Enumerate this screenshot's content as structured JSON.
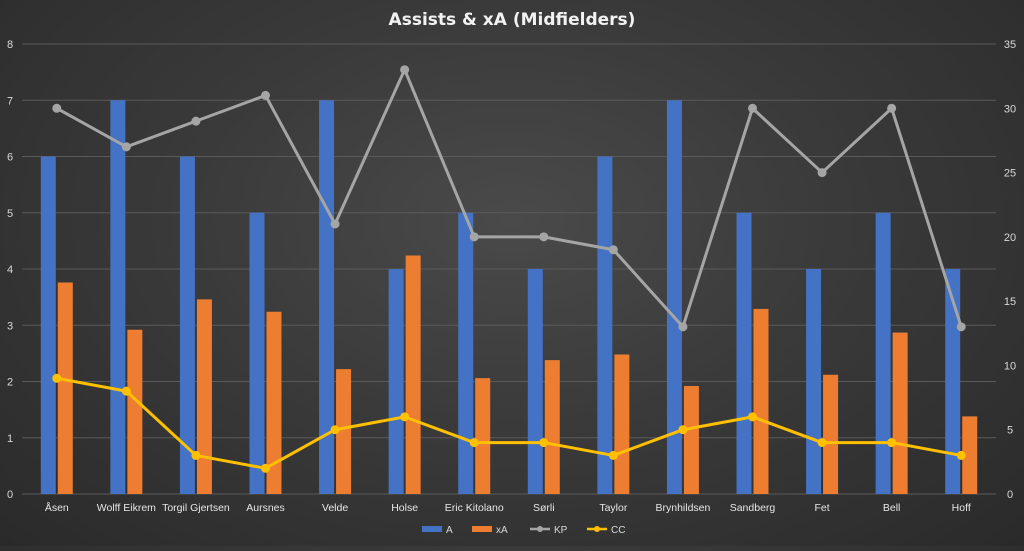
{
  "chart_data": {
    "type": "bar",
    "title": "Assists & xA (Midfielders)",
    "categories": [
      "Åsen",
      "Wolff Eikrem",
      "Torgil Gjertsen",
      "Aursnes",
      "Velde",
      "Holse",
      "Eric Kitolano",
      "Sørli",
      "Taylor",
      "Brynhildsen",
      "Sandberg",
      "Fet",
      "Bell",
      "Hoff"
    ],
    "series": [
      {
        "name": "A",
        "type": "bar",
        "axis": "left",
        "color": "#4472c4",
        "values": [
          6,
          7,
          6,
          5,
          7,
          4,
          5,
          4,
          6,
          7,
          5,
          4,
          5,
          4
        ]
      },
      {
        "name": "xA",
        "type": "bar",
        "axis": "left",
        "color": "#ed7d31",
        "values": [
          3.76,
          2.92,
          3.46,
          3.24,
          2.22,
          4.24,
          2.06,
          2.38,
          2.48,
          1.92,
          3.29,
          2.12,
          2.87,
          1.38
        ]
      },
      {
        "name": "KP",
        "type": "line",
        "axis": "right",
        "color": "#a5a5a5",
        "values": [
          30,
          27,
          29,
          31,
          21,
          33,
          20,
          20,
          19,
          13,
          30,
          25,
          30,
          13
        ]
      },
      {
        "name": "CC",
        "type": "line",
        "axis": "right",
        "color": "#ffc000",
        "values": [
          9,
          8,
          3,
          2,
          5,
          6,
          4,
          4,
          3,
          5,
          6,
          4,
          4,
          3
        ]
      }
    ],
    "ylim_left": [
      0,
      8
    ],
    "yticks_left": [
      "0",
      "1",
      "2",
      "3",
      "4",
      "5",
      "6",
      "7",
      "8"
    ],
    "ylim_right": [
      0,
      35
    ],
    "yticks_right": [
      "0",
      "5",
      "10",
      "15",
      "20",
      "25",
      "30",
      "35"
    ],
    "grid": true,
    "legend_position": "bottom",
    "xlabel": "",
    "ylabel": ""
  }
}
